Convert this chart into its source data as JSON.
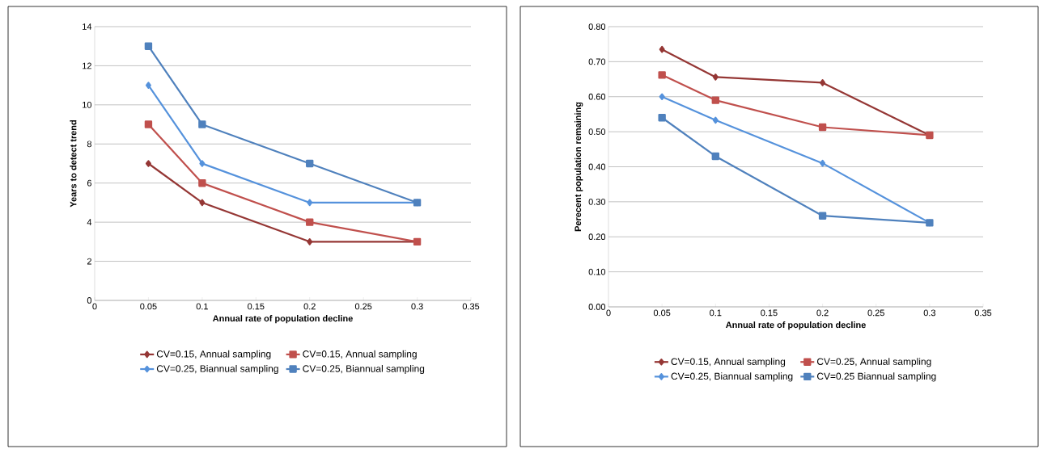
{
  "chart_data": [
    {
      "type": "line",
      "xlabel": "Annual rate of population decline",
      "ylabel": "Years to detect trend",
      "x": [
        0.05,
        0.1,
        0.2,
        0.3
      ],
      "series": [
        {
          "name": "CV=0.15, Annual sampling",
          "color": "#953735",
          "marker": "diamond",
          "values": [
            7,
            5,
            3,
            3
          ]
        },
        {
          "name": "CV=0.15, Annual sampling",
          "color": "#c0504d",
          "marker": "square",
          "values": [
            9,
            6,
            4,
            3
          ]
        },
        {
          "name": "CV=0.25, Biannual sampling",
          "color": "#5592dc",
          "marker": "diamond",
          "values": [
            11,
            7,
            5,
            5
          ]
        },
        {
          "name": "CV=0.25, Biannual sampling",
          "color": "#4f81bd",
          "marker": "square",
          "values": [
            13,
            9,
            7,
            5
          ]
        }
      ],
      "xlim": [
        0,
        0.35
      ],
      "xticks": [
        0,
        0.05,
        0.1,
        0.15,
        0.2,
        0.25,
        0.3,
        0.35
      ],
      "ylim": [
        0,
        14
      ],
      "yticks": [
        0,
        2,
        4,
        6,
        8,
        10,
        12,
        14
      ],
      "grid": "y",
      "legend": "bottom"
    },
    {
      "type": "line",
      "xlabel": "Annual rate of population decline",
      "ylabel": "Perecent population remaining",
      "x": [
        0.05,
        0.1,
        0.2,
        0.3
      ],
      "series": [
        {
          "name": "CV=0.15, Annual sampling",
          "color": "#953735",
          "marker": "diamond",
          "values": [
            0.735,
            0.656,
            0.64,
            0.49
          ]
        },
        {
          "name": "CV=0.25, Annual sampling",
          "color": "#c0504d",
          "marker": "square",
          "values": [
            0.662,
            0.59,
            0.513,
            0.49
          ]
        },
        {
          "name": "CV=0.25, Biannual sampling",
          "color": "#5592dc",
          "marker": "diamond",
          "values": [
            0.6,
            0.533,
            0.41,
            0.24
          ]
        },
        {
          "name": "CV=0.25 Biannual sampling",
          "color": "#4f81bd",
          "marker": "square",
          "values": [
            0.54,
            0.43,
            0.26,
            0.24
          ]
        }
      ],
      "xlim": [
        0,
        0.35
      ],
      "xticks": [
        0,
        0.05,
        0.1,
        0.15,
        0.2,
        0.25,
        0.3,
        0.35
      ],
      "ylim": [
        0,
        0.8
      ],
      "yticks": [
        {
          "value": 0,
          "label": "0.00"
        },
        {
          "value": 0.1,
          "label": "0.10"
        },
        {
          "value": 0.2,
          "label": "0.20"
        },
        {
          "value": 0.3,
          "label": "0.30"
        },
        {
          "value": 0.4,
          "label": "0.40"
        },
        {
          "value": 0.5,
          "label": "0.50"
        },
        {
          "value": 0.6,
          "label": "0.60"
        },
        {
          "value": 0.7,
          "label": "0.70"
        },
        {
          "value": 0.8,
          "label": "0.80"
        }
      ],
      "grid": "y",
      "legend": "bottom"
    }
  ]
}
